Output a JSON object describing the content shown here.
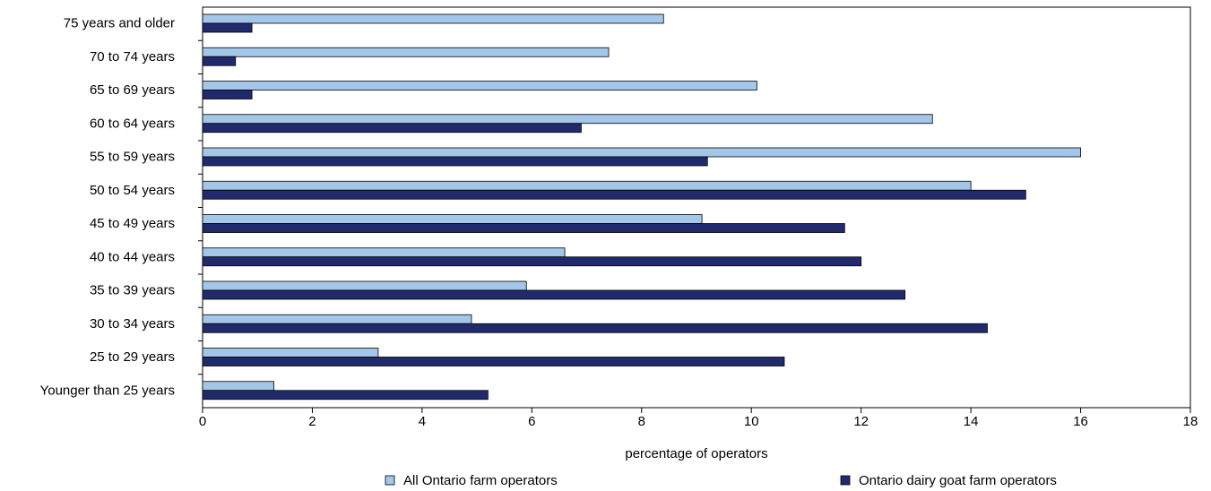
{
  "chart_data": {
    "type": "bar",
    "orientation": "horizontal",
    "xlabel": "percentage of operators",
    "categories": [
      "75 years and older",
      "70 to 74 years",
      "65 to 69 years",
      "60 to 64 years",
      "55 to 59 years",
      "50 to 54 years",
      "45 to 49 years",
      "40 to 44 years",
      "35 to 39 years",
      "30 to 34 years",
      "25 to 29 years",
      "Younger than 25 years"
    ],
    "series": [
      {
        "name": "All Ontario farm operators",
        "color": "#a3c6e9",
        "values": [
          8.4,
          7.4,
          10.1,
          13.3,
          16.0,
          14.0,
          9.1,
          6.6,
          5.9,
          4.9,
          3.2,
          1.3
        ]
      },
      {
        "name": "Ontario dairy goat farm operators",
        "color": "#222a6e",
        "values": [
          0.9,
          0.6,
          0.9,
          6.9,
          9.2,
          15.0,
          11.7,
          12.0,
          12.8,
          14.3,
          10.6,
          5.2
        ]
      }
    ],
    "xlim": [
      0,
      18
    ],
    "xticks": [
      0,
      2,
      4,
      6,
      8,
      10,
      12,
      14,
      16,
      18
    ],
    "legend": "bottom"
  }
}
